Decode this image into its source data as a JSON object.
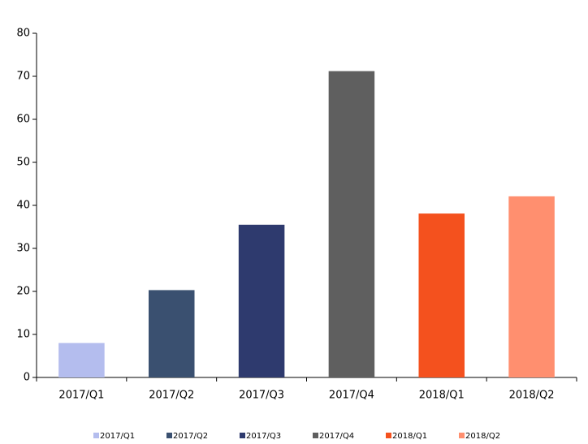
{
  "chart_data": {
    "type": "bar",
    "categories": [
      "2017/Q1",
      "2017/Q2",
      "2017/Q3",
      "2017/Q4",
      "2018/Q1",
      "2018/Q2"
    ],
    "values": [
      8,
      20.3,
      35.5,
      71.2,
      38.1,
      42.1
    ],
    "colors": [
      "#b4bdee",
      "#3a5070",
      "#2e3a6e",
      "#5f5f5f",
      "#f4511e",
      "#ff8f6f"
    ],
    "ylim": [
      0,
      80
    ],
    "yticks": [
      0,
      10,
      20,
      30,
      40,
      50,
      60,
      70,
      80
    ],
    "grid": false,
    "legend": "bottom"
  }
}
